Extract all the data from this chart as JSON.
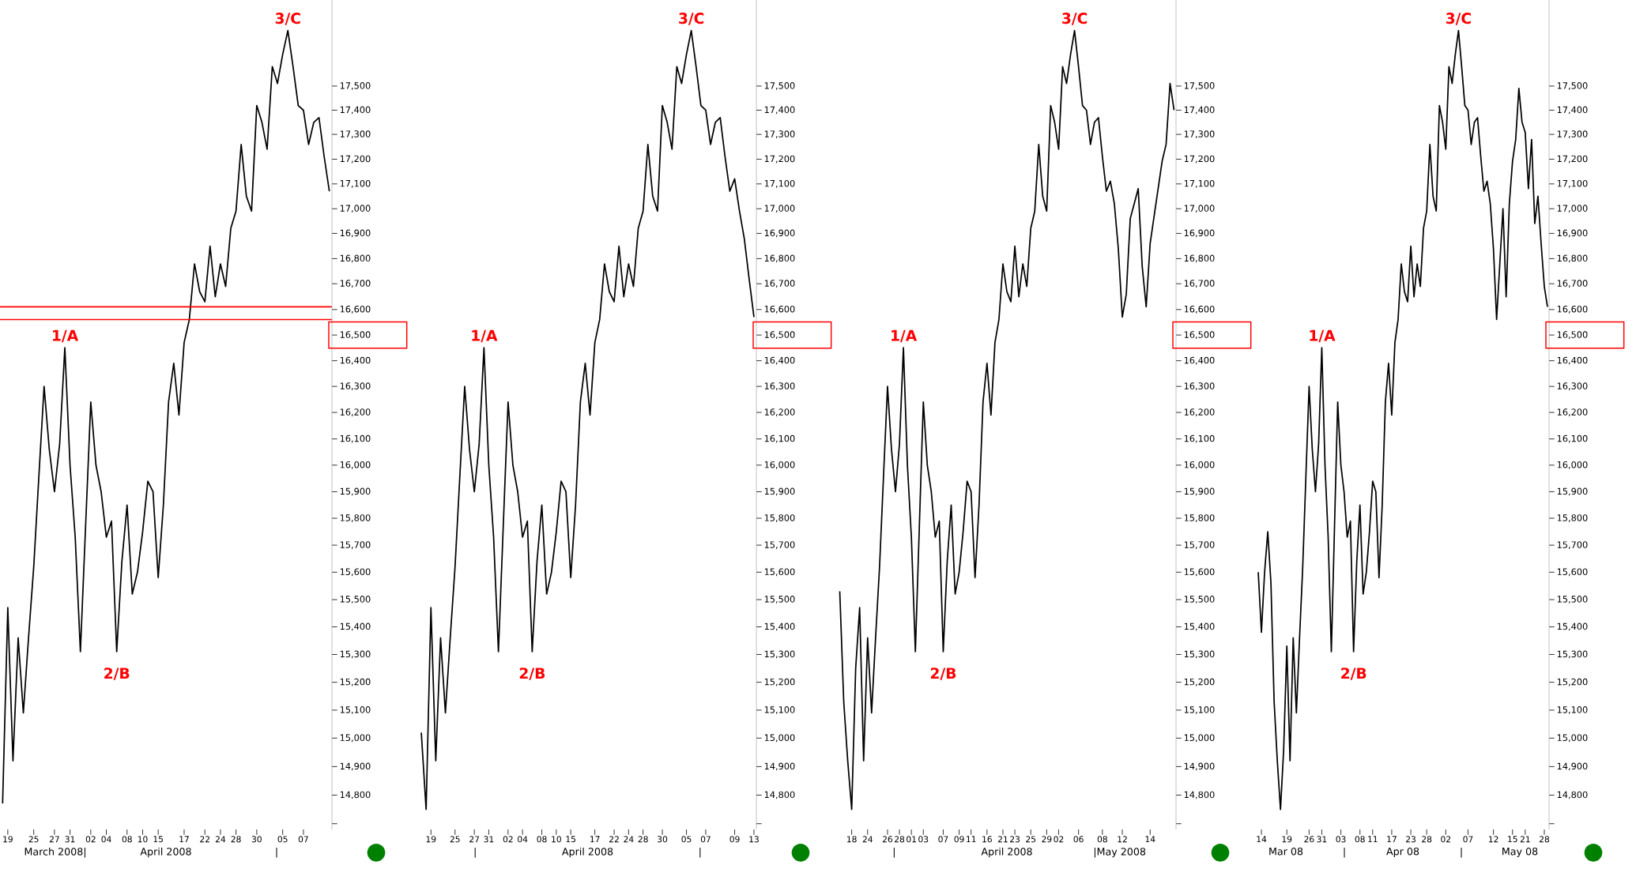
{
  "chart_data": [
    {
      "type": "line",
      "log": true,
      "categories": [
        null,
        "19",
        null,
        null,
        null,
        null,
        "25",
        null,
        null,
        null,
        "27",
        null,
        null,
        "31",
        null,
        null,
        null,
        "02",
        null,
        null,
        "04",
        null,
        null,
        null,
        "08",
        null,
        null,
        "10",
        null,
        null,
        "15",
        null,
        null,
        null,
        null,
        "17",
        null,
        null,
        null,
        "22",
        null,
        null,
        "24",
        null,
        null,
        "28",
        null,
        null,
        null,
        "30",
        null,
        null,
        null,
        null,
        "05",
        null,
        null,
        null,
        "07",
        null,
        null,
        null,
        null,
        null
      ],
      "series": [
        {
          "color": "#000000",
          "values": [
            14770,
            15470,
            14920,
            15360,
            15090,
            15360,
            15620,
            15960,
            16300,
            16060,
            15900,
            16080,
            16450,
            16000,
            15730,
            15310,
            15770,
            16240,
            16000,
            15900,
            15730,
            15790,
            15310,
            15640,
            15850,
            15520,
            15600,
            15750,
            15940,
            15900,
            15580,
            15850,
            16240,
            16390,
            16190,
            16470,
            16560,
            16780,
            16670,
            16630,
            16850,
            16650,
            16780,
            16690,
            16920,
            16990,
            17260,
            17050,
            16990,
            17420,
            17350,
            17240,
            17580,
            17510,
            17630,
            17730,
            17580,
            17420,
            17400,
            17260,
            17350,
            17370,
            17210,
            17070
          ]
        }
      ],
      "ylim": [
        14680,
        17860
      ],
      "yticks": [
        {
          "value": 14700,
          "label": null
        },
        {
          "value": 14800,
          "label": "14,800"
        },
        {
          "value": 14900,
          "label": "14,900"
        },
        {
          "value": 15000,
          "label": "15,000"
        },
        {
          "value": 15100,
          "label": "15,100"
        },
        {
          "value": 15200,
          "label": "15,200"
        },
        {
          "value": 15300,
          "label": "15,300"
        },
        {
          "value": 15400,
          "label": "15,400"
        },
        {
          "value": 15500,
          "label": "15,500"
        },
        {
          "value": 15600,
          "label": "15,600"
        },
        {
          "value": 15700,
          "label": "15,700"
        },
        {
          "value": 15800,
          "label": "15,800"
        },
        {
          "value": 15900,
          "label": "15,900"
        },
        {
          "value": 16000,
          "label": "16,000"
        },
        {
          "value": 16100,
          "label": "16,100"
        },
        {
          "value": 16200,
          "label": "16,200"
        },
        {
          "value": 16300,
          "label": "16,300"
        },
        {
          "value": 16400,
          "label": "16,400"
        },
        {
          "value": 16500,
          "label": "16,500"
        },
        {
          "value": 16600,
          "label": "16,600"
        },
        {
          "value": 16700,
          "label": "16,700"
        },
        {
          "value": 16800,
          "label": "16,800"
        },
        {
          "value": 16900,
          "label": "16,900"
        },
        {
          "value": 17000,
          "label": "17,000"
        },
        {
          "value": 17100,
          "label": "17,100"
        },
        {
          "value": 17200,
          "label": "17,200"
        },
        {
          "value": 17300,
          "label": "17,300"
        },
        {
          "value": 17400,
          "label": "17,400"
        },
        {
          "value": 17500,
          "label": "17,500"
        }
      ],
      "ref_lines": [
        {
          "axis": "y",
          "value": 16610,
          "color": "#ff0000"
        },
        {
          "axis": "y",
          "value": 16560,
          "color": "#ff0000"
        }
      ],
      "annotations": [
        {
          "text": "1/A",
          "y": 16450
        },
        {
          "text": "2/B",
          "y": 15310
        },
        {
          "text": "3/C",
          "y": 17730
        },
        "March 2008|",
        "April 2008",
        "|"
      ]
    },
    {
      "type": "line",
      "log": true,
      "categories": [
        null,
        null,
        "19",
        null,
        null,
        null,
        null,
        "25",
        null,
        null,
        null,
        "27",
        null,
        null,
        "31",
        null,
        null,
        null,
        "02",
        null,
        null,
        "04",
        null,
        null,
        null,
        "08",
        null,
        null,
        "10",
        null,
        null,
        "15",
        null,
        null,
        null,
        null,
        "17",
        null,
        null,
        null,
        "22",
        null,
        null,
        "24",
        null,
        null,
        "28",
        null,
        null,
        null,
        "30",
        null,
        null,
        null,
        null,
        "05",
        null,
        null,
        null,
        "07",
        null,
        null,
        null,
        null,
        null,
        "09",
        null,
        null,
        null,
        "13"
      ],
      "series": [
        {
          "color": "#000000",
          "values": [
            15020,
            14750,
            15470,
            14920,
            15360,
            15090,
            15360,
            15620,
            15960,
            16300,
            16060,
            15900,
            16080,
            16450,
            16000,
            15730,
            15310,
            15770,
            16240,
            16000,
            15900,
            15730,
            15790,
            15310,
            15640,
            15850,
            15520,
            15600,
            15750,
            15940,
            15900,
            15580,
            15850,
            16240,
            16390,
            16190,
            16470,
            16560,
            16780,
            16670,
            16630,
            16850,
            16650,
            16780,
            16690,
            16920,
            16990,
            17260,
            17050,
            16990,
            17420,
            17350,
            17240,
            17580,
            17510,
            17630,
            17730,
            17580,
            17420,
            17400,
            17260,
            17350,
            17370,
            17210,
            17070,
            17120,
            16990,
            16880,
            16720,
            16570
          ]
        }
      ],
      "ylim": [
        14680,
        17860
      ],
      "yticks": [
        {
          "value": 14700,
          "label": null
        },
        {
          "value": 14800,
          "label": "14,800"
        },
        {
          "value": 14900,
          "label": "14,900"
        },
        {
          "value": 15000,
          "label": "15,000"
        },
        {
          "value": 15100,
          "label": "15,100"
        },
        {
          "value": 15200,
          "label": "15,200"
        },
        {
          "value": 15300,
          "label": "15,300"
        },
        {
          "value": 15400,
          "label": "15,400"
        },
        {
          "value": 15500,
          "label": "15,500"
        },
        {
          "value": 15600,
          "label": "15,600"
        },
        {
          "value": 15700,
          "label": "15,700"
        },
        {
          "value": 15800,
          "label": "15,800"
        },
        {
          "value": 15900,
          "label": "15,900"
        },
        {
          "value": 16000,
          "label": "16,000"
        },
        {
          "value": 16100,
          "label": "16,100"
        },
        {
          "value": 16200,
          "label": "16,200"
        },
        {
          "value": 16300,
          "label": "16,300"
        },
        {
          "value": 16400,
          "label": "16,400"
        },
        {
          "value": 16500,
          "label": "16,500"
        },
        {
          "value": 16600,
          "label": "16,600"
        },
        {
          "value": 16700,
          "label": "16,700"
        },
        {
          "value": 16800,
          "label": "16,800"
        },
        {
          "value": 16900,
          "label": "16,900"
        },
        {
          "value": 17000,
          "label": "17,000"
        },
        {
          "value": 17100,
          "label": "17,100"
        },
        {
          "value": 17200,
          "label": "17,200"
        },
        {
          "value": 17300,
          "label": "17,300"
        },
        {
          "value": 17400,
          "label": "17,400"
        },
        {
          "value": 17500,
          "label": "17,500"
        }
      ],
      "annotations": [
        {
          "text": "1/A",
          "y": 16450
        },
        {
          "text": "2/B",
          "y": 15310
        },
        {
          "text": "3/C",
          "y": 17730
        },
        "|",
        "April 2008",
        "|"
      ]
    },
    {
      "type": "line",
      "log": true,
      "categories": [
        null,
        null,
        null,
        "18",
        null,
        null,
        null,
        "24",
        null,
        null,
        null,
        null,
        "26",
        null,
        null,
        "28",
        null,
        null,
        "01",
        null,
        null,
        "03",
        null,
        null,
        null,
        null,
        "07",
        null,
        null,
        null,
        "09",
        null,
        null,
        "11",
        null,
        null,
        null,
        "16",
        null,
        null,
        null,
        "21",
        null,
        null,
        "23",
        null,
        null,
        null,
        "25",
        null,
        null,
        null,
        "29",
        null,
        null,
        "02",
        null,
        null,
        null,
        null,
        "06",
        null,
        null,
        null,
        null,
        null,
        "08",
        null,
        null,
        null,
        null,
        "12",
        null,
        null,
        null,
        null,
        null,
        null,
        "14",
        null,
        null,
        null,
        null,
        null,
        null
      ],
      "series": [
        {
          "color": "#000000",
          "values": [
            15530,
            15130,
            14920,
            14750,
            15250,
            15470,
            14920,
            15360,
            15090,
            15360,
            15620,
            15960,
            16300,
            16060,
            15900,
            16080,
            16450,
            16000,
            15730,
            15310,
            15770,
            16240,
            16000,
            15900,
            15730,
            15790,
            15310,
            15640,
            15850,
            15520,
            15600,
            15750,
            15940,
            15900,
            15580,
            15850,
            16240,
            16390,
            16190,
            16470,
            16560,
            16780,
            16670,
            16630,
            16850,
            16650,
            16780,
            16690,
            16920,
            16990,
            17260,
            17050,
            16990,
            17420,
            17350,
            17240,
            17580,
            17510,
            17630,
            17730,
            17580,
            17420,
            17400,
            17260,
            17350,
            17370,
            17210,
            17070,
            17110,
            17020,
            16840,
            16570,
            16660,
            16960,
            17020,
            17080,
            16770,
            16610,
            16860,
            16970,
            17080,
            17190,
            17260,
            17510,
            17400
          ]
        }
      ],
      "ylim": [
        14680,
        17860
      ],
      "yticks": [
        {
          "value": 14700,
          "label": null
        },
        {
          "value": 14800,
          "label": "14,800"
        },
        {
          "value": 14900,
          "label": "14,900"
        },
        {
          "value": 15000,
          "label": "15,000"
        },
        {
          "value": 15100,
          "label": "15,100"
        },
        {
          "value": 15200,
          "label": "15,200"
        },
        {
          "value": 15300,
          "label": "15,300"
        },
        {
          "value": 15400,
          "label": "15,400"
        },
        {
          "value": 15500,
          "label": "15,500"
        },
        {
          "value": 15600,
          "label": "15,600"
        },
        {
          "value": 15700,
          "label": "15,700"
        },
        {
          "value": 15800,
          "label": "15,800"
        },
        {
          "value": 15900,
          "label": "15,900"
        },
        {
          "value": 16000,
          "label": "16,000"
        },
        {
          "value": 16100,
          "label": "16,100"
        },
        {
          "value": 16200,
          "label": "16,200"
        },
        {
          "value": 16300,
          "label": "16,300"
        },
        {
          "value": 16400,
          "label": "16,400"
        },
        {
          "value": 16500,
          "label": "16,500"
        },
        {
          "value": 16600,
          "label": "16,600"
        },
        {
          "value": 16700,
          "label": "16,700"
        },
        {
          "value": 16800,
          "label": "16,800"
        },
        {
          "value": 16900,
          "label": "16,900"
        },
        {
          "value": 17000,
          "label": "17,000"
        },
        {
          "value": 17100,
          "label": "17,100"
        },
        {
          "value": 17200,
          "label": "17,200"
        },
        {
          "value": 17300,
          "label": "17,300"
        },
        {
          "value": 17400,
          "label": "17,400"
        },
        {
          "value": 17500,
          "label": "17,500"
        }
      ],
      "annotations": [
        {
          "text": "1/A",
          "y": 16450
        },
        {
          "text": "2/B",
          "y": 15310
        },
        {
          "text": "3/C",
          "y": 17730
        },
        "|",
        "April 2008",
        "|May 2008"
      ]
    },
    {
      "type": "line",
      "log": true,
      "categories": [
        null,
        "14",
        null,
        null,
        null,
        null,
        null,
        null,
        null,
        "19",
        null,
        null,
        null,
        null,
        null,
        null,
        "26",
        null,
        null,
        null,
        "31",
        null,
        null,
        null,
        null,
        null,
        "03",
        null,
        null,
        null,
        null,
        null,
        "08",
        null,
        null,
        null,
        "11",
        null,
        null,
        null,
        null,
        null,
        "17",
        null,
        null,
        null,
        null,
        null,
        "23",
        null,
        null,
        null,
        null,
        "28",
        null,
        null,
        null,
        null,
        null,
        "02",
        null,
        null,
        null,
        null,
        null,
        null,
        "07",
        null,
        null,
        null,
        null,
        null,
        null,
        null,
        "12",
        null,
        null,
        null,
        null,
        null,
        "15",
        null,
        null,
        null,
        "21",
        null,
        null,
        null,
        null,
        null,
        "28",
        null
      ],
      "series": [
        {
          "color": "#000000",
          "values": [
            15600,
            15380,
            15600,
            15750,
            15560,
            15130,
            14920,
            14750,
            14960,
            15330,
            14920,
            15360,
            15090,
            15360,
            15620,
            15960,
            16300,
            16060,
            15900,
            16080,
            16450,
            16000,
            15730,
            15310,
            15770,
            16240,
            16000,
            15900,
            15730,
            15790,
            15310,
            15640,
            15850,
            15520,
            15600,
            15750,
            15940,
            15900,
            15580,
            15850,
            16240,
            16390,
            16190,
            16470,
            16560,
            16780,
            16670,
            16630,
            16850,
            16650,
            16780,
            16690,
            16920,
            16990,
            17260,
            17050,
            16990,
            17420,
            17350,
            17240,
            17580,
            17510,
            17630,
            17730,
            17580,
            17420,
            17400,
            17260,
            17350,
            17370,
            17210,
            17070,
            17110,
            17020,
            16840,
            16560,
            16780,
            17000,
            16650,
            17020,
            17190,
            17280,
            17490,
            17350,
            17310,
            17080,
            17280,
            16940,
            17050,
            16860,
            16690,
            16610
          ]
        }
      ],
      "ylim": [
        14680,
        17860
      ],
      "yticks": [
        {
          "value": 14700,
          "label": null
        },
        {
          "value": 14800,
          "label": "14,800"
        },
        {
          "value": 14900,
          "label": "14,900"
        },
        {
          "value": 15000,
          "label": "15,000"
        },
        {
          "value": 15100,
          "label": "15,100"
        },
        {
          "value": 15200,
          "label": "15,200"
        },
        {
          "value": 15300,
          "label": "15,300"
        },
        {
          "value": 15400,
          "label": "15,400"
        },
        {
          "value": 15500,
          "label": "15,500"
        },
        {
          "value": 15600,
          "label": "15,600"
        },
        {
          "value": 15700,
          "label": "15,700"
        },
        {
          "value": 15800,
          "label": "15,800"
        },
        {
          "value": 15900,
          "label": "15,900"
        },
        {
          "value": 16000,
          "label": "16,000"
        },
        {
          "value": 16100,
          "label": "16,100"
        },
        {
          "value": 16200,
          "label": "16,200"
        },
        {
          "value": 16300,
          "label": "16,300"
        },
        {
          "value": 16400,
          "label": "16,400"
        },
        {
          "value": 16500,
          "label": "16,500"
        },
        {
          "value": 16600,
          "label": "16,600"
        },
        {
          "value": 16700,
          "label": "16,700"
        },
        {
          "value": 16800,
          "label": "16,800"
        },
        {
          "value": 16900,
          "label": "16,900"
        },
        {
          "value": 17000,
          "label": "17,000"
        },
        {
          "value": 17100,
          "label": "17,100"
        },
        {
          "value": 17200,
          "label": "17,200"
        },
        {
          "value": 17300,
          "label": "17,300"
        },
        {
          "value": 17400,
          "label": "17,400"
        },
        {
          "value": 17500,
          "label": "17,500"
        }
      ],
      "annotations": [
        {
          "text": "1/A",
          "y": 16450
        },
        {
          "text": "2/B",
          "y": 15310
        },
        {
          "text": "3/C",
          "y": 17730
        },
        "Mar 08",
        "|",
        "Apr 08",
        "|",
        "May 08"
      ]
    }
  ]
}
